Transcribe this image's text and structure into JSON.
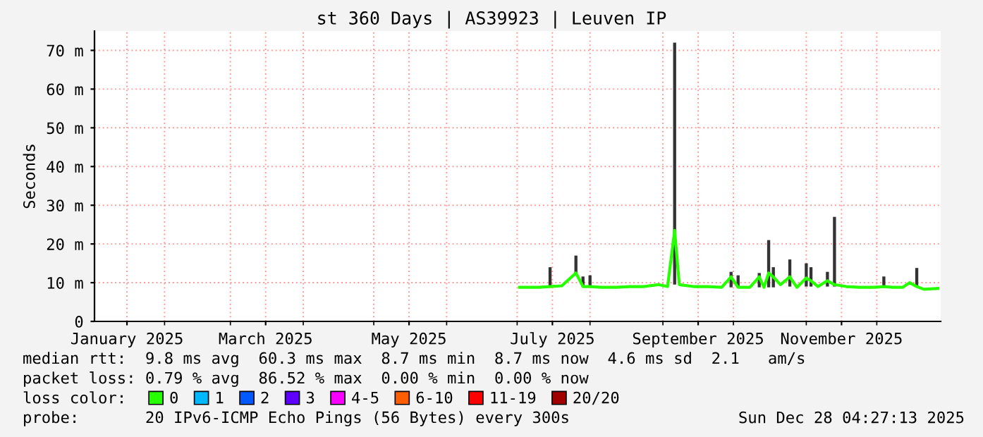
{
  "chart_data": {
    "type": "line",
    "title": "st 360 Days | AS39923 | Leuven IP",
    "ylabel": "Seconds",
    "legend_title": "loss color:",
    "xlim": [
      "2025-01-02T04:27",
      "2025-12-28T04:27"
    ],
    "xticks": [
      {
        "value": "2025-01-16",
        "label": "January 2025"
      },
      {
        "value": "2025-02-01",
        "label": null
      },
      {
        "value": "2025-03-01",
        "label": null
      },
      {
        "value": "2025-03-16",
        "label": "March 2025"
      },
      {
        "value": "2025-04-01",
        "label": null
      },
      {
        "value": "2025-05-01",
        "label": null
      },
      {
        "value": "2025-05-16",
        "label": "May 2025"
      },
      {
        "value": "2025-06-01",
        "label": null
      },
      {
        "value": "2025-07-01",
        "label": null
      },
      {
        "value": "2025-07-16",
        "label": "July 2025"
      },
      {
        "value": "2025-08-01",
        "label": null
      },
      {
        "value": "2025-09-01",
        "label": null
      },
      {
        "value": "2025-09-16",
        "label": "September 2025"
      },
      {
        "value": "2025-10-01",
        "label": null
      },
      {
        "value": "2025-11-01",
        "label": null
      },
      {
        "value": "2025-11-16",
        "label": "November 2025"
      },
      {
        "value": "2025-12-01",
        "label": null
      }
    ],
    "ylim": [
      0,
      75
    ],
    "yticks": [
      0,
      {
        "value": 10,
        "label": "10 m"
      },
      {
        "value": 20,
        "label": "20 m"
      },
      {
        "value": 30,
        "label": "30 m"
      },
      {
        "value": 40,
        "label": "40 m"
      },
      {
        "value": 50,
        "label": "50 m"
      },
      {
        "value": 60,
        "label": "60 m"
      },
      {
        "value": 70,
        "label": "70 m"
      }
    ],
    "grid": true,
    "legend": "bottom",
    "series": [
      {
        "type": "bar",
        "color": "#333333",
        "x": [
          "2025-07-15",
          "2025-07-26",
          "2025-07-29",
          "2025-08-01",
          "2025-09-06",
          "2025-09-30",
          "2025-10-03",
          "2025-10-12",
          "2025-10-16",
          "2025-10-18",
          "2025-10-25",
          "2025-11-01",
          "2025-11-03",
          "2025-11-10",
          "2025-11-13",
          "2025-12-04",
          "2025-12-18"
        ],
        "base": [
          9,
          12.5,
          9,
          9,
          9.5,
          8.8,
          8.8,
          8.8,
          8.8,
          8.8,
          9,
          9,
          9,
          9,
          9,
          9,
          9
        ],
        "values": [
          5,
          4.5,
          2.6,
          2.9,
          62.5,
          4,
          3.1,
          3.7,
          12.2,
          5.2,
          7,
          6,
          5,
          3.8,
          18,
          2.6,
          4.8
        ]
      },
      {
        "name": "0",
        "color": "#26ff00",
        "x": [
          "2025-07-02",
          "2025-07-06",
          "2025-07-10",
          "2025-07-15",
          "2025-07-20",
          "2025-07-26",
          "2025-07-29",
          "2025-08-01",
          "2025-08-06",
          "2025-08-12",
          "2025-08-18",
          "2025-08-24",
          "2025-08-30",
          "2025-09-03",
          "2025-09-06",
          "2025-09-08",
          "2025-09-14",
          "2025-09-20",
          "2025-09-26",
          "2025-09-30",
          "2025-10-03",
          "2025-10-08",
          "2025-10-12",
          "2025-10-14",
          "2025-10-16",
          "2025-10-18",
          "2025-10-21",
          "2025-10-25",
          "2025-10-28",
          "2025-11-01",
          "2025-11-03",
          "2025-11-06",
          "2025-11-10",
          "2025-11-13",
          "2025-11-18",
          "2025-11-24",
          "2025-11-30",
          "2025-12-04",
          "2025-12-08",
          "2025-12-12",
          "2025-12-15",
          "2025-12-18",
          "2025-12-21",
          "2025-12-27"
        ],
        "values": [
          8.8,
          8.8,
          8.8,
          9,
          9.2,
          12.5,
          9,
          9,
          8.8,
          8.8,
          9,
          9,
          9.5,
          9,
          23.5,
          9.5,
          9,
          9,
          8.8,
          11.5,
          8.8,
          8.8,
          11.5,
          8.8,
          12.5,
          11.5,
          9.5,
          11.5,
          8.8,
          11.2,
          10.5,
          9,
          10.5,
          9.5,
          9,
          8.8,
          8.8,
          9,
          8.8,
          8.8,
          10,
          9,
          8.3,
          8.5
        ]
      },
      {
        "name": "1",
        "color": "#00b8ff"
      },
      {
        "name": "2",
        "color": "#0059ff"
      },
      {
        "name": "3",
        "color": "#5e00ff"
      },
      {
        "name": "4-5",
        "color": "#f700ff"
      },
      {
        "name": "6-10",
        "color": "#ff5e00"
      },
      {
        "name": "11-19",
        "color": "#ff0000"
      },
      {
        "name": "20/20",
        "color": "#a10000"
      }
    ],
    "annotations": [
      "median rtt:  9.8 ms avg  60.3 ms max  8.7 ms min  8.7 ms now  4.6 ms sd  2.1   am/s",
      "packet loss: 0.79 % avg  86.52 % max  0.00 % min  0.00 % now",
      "probe:       20 IPv6-ICMP Echo Pings (56 Bytes) every 300s",
      "Sun Dec 28 04:27:13 2025"
    ]
  }
}
